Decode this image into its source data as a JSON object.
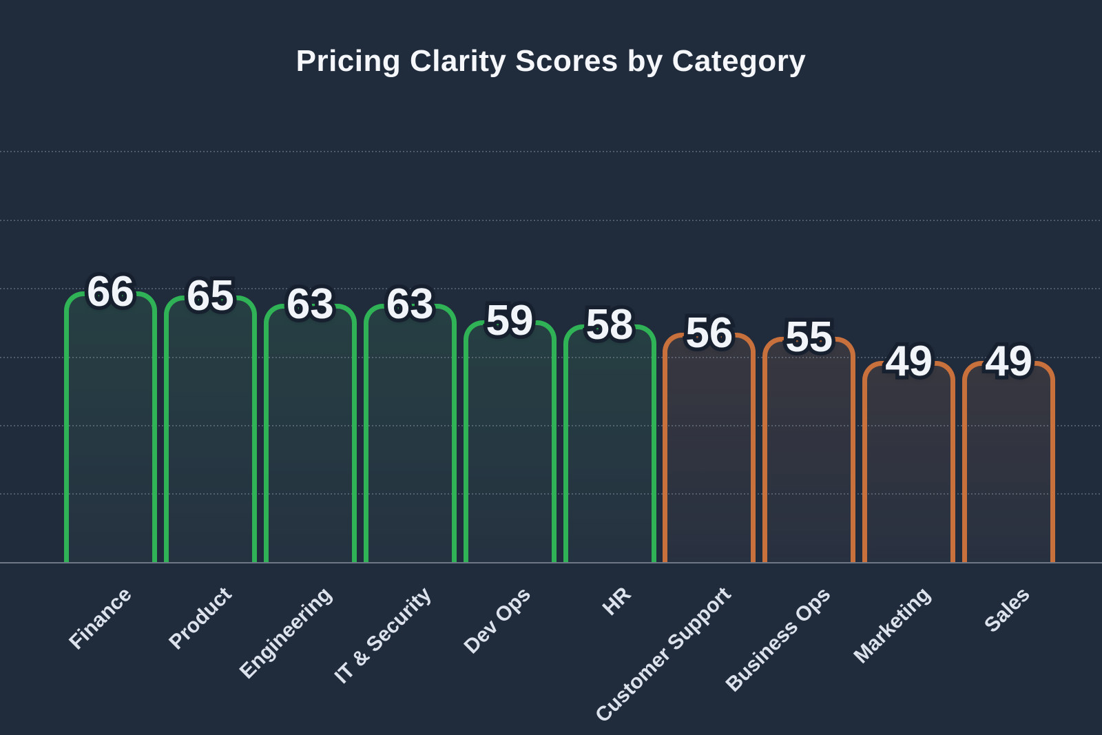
{
  "page": {
    "background_color": "#202b3c"
  },
  "chart_data": {
    "type": "bar",
    "title": "Pricing Clarity Scores by Category",
    "categories": [
      "Finance",
      "Product",
      "Engineering",
      "IT & Security",
      "Dev Ops",
      "HR",
      "Customer Support",
      "Business Ops",
      "Marketing",
      "Sales"
    ],
    "values": [
      66,
      65,
      63,
      63,
      59,
      58,
      56,
      55,
      49,
      49
    ],
    "bar_colors": [
      "green",
      "green",
      "green",
      "green",
      "green",
      "green",
      "orange",
      "orange",
      "orange",
      "orange"
    ],
    "palette": {
      "green": "#2fb356",
      "orange": "#c9713d"
    },
    "xlabel": "",
    "ylabel": "",
    "ylim": [
      0,
      100
    ],
    "gridline_values": [
      16.7,
      33.3,
      50,
      66.7,
      83.3,
      100
    ],
    "gridline_style": "dotted",
    "gridline_color": "rgba(158,170,188,0.38)",
    "axis_line_color": "#6e7887",
    "value_labels": "on",
    "value_label_color": "#f1f4f9",
    "value_label_outline_color": "#16202e",
    "tick_label_color": "#dde3ed",
    "legend": "none",
    "y_axis_tick_labels": "none"
  }
}
